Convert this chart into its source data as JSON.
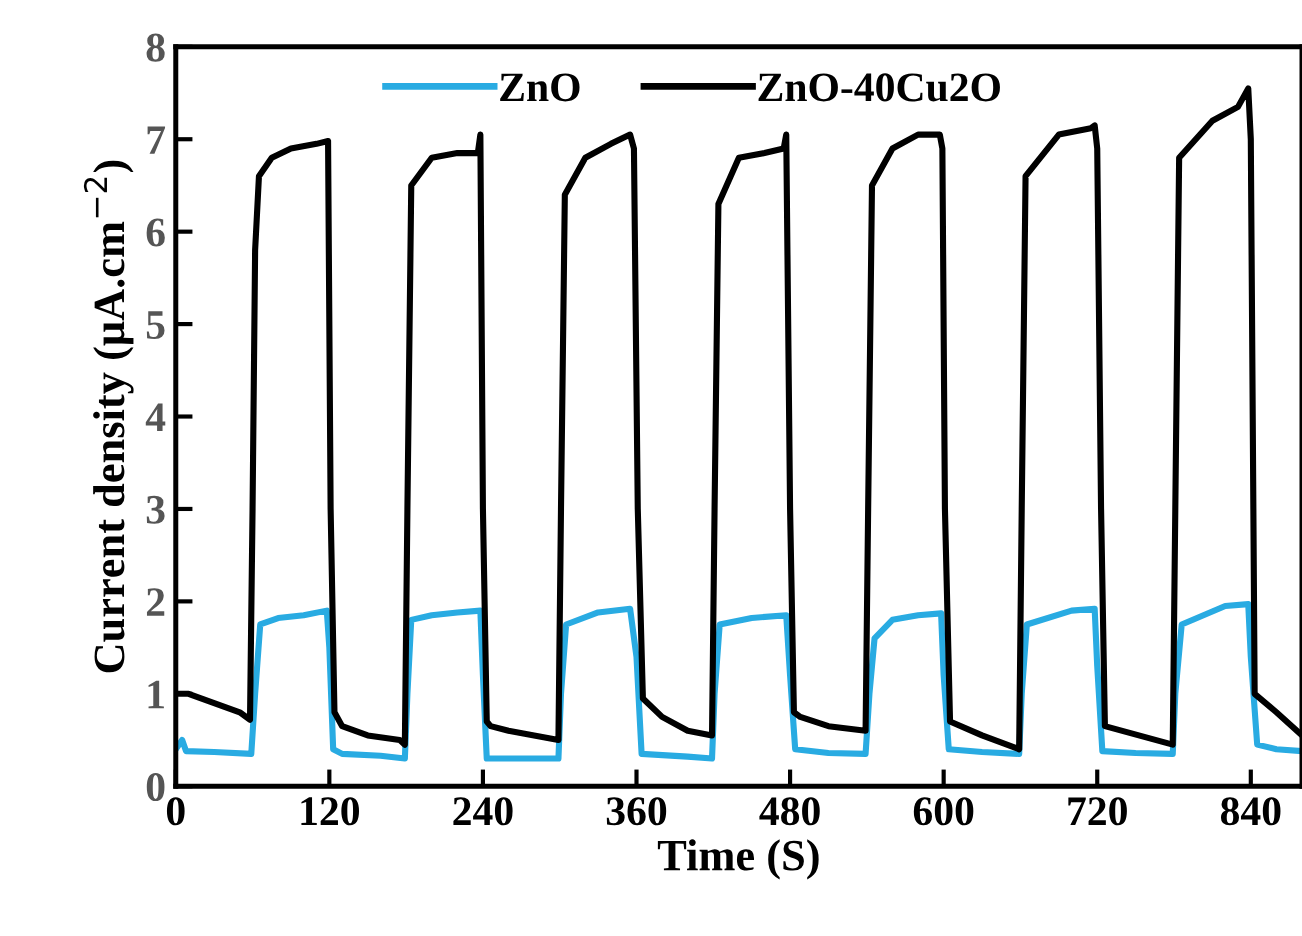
{
  "chart_data": {
    "type": "line",
    "xlabel": "Time (S)",
    "ylabel": "Current density (μA.cm$^{−2}$)",
    "xlim": [
      0,
      880
    ],
    "xticks": [
      0,
      120,
      240,
      360,
      480,
      600,
      720,
      840
    ],
    "ylim": [
      0,
      8
    ],
    "yticks": [
      0,
      1,
      2,
      3,
      4,
      5,
      6,
      7,
      8
    ],
    "grid": false,
    "legend": "top",
    "marker": "none",
    "line_style": "solid",
    "series": [
      {
        "name": "ZnO",
        "color": "#29abe2",
        "x": [
          0,
          5,
          8,
          30,
          59,
          62,
          66,
          80,
          100,
          118,
          120,
          123,
          130,
          160,
          179,
          181,
          184,
          200,
          220,
          238,
          240,
          243,
          260,
          299,
          301,
          305,
          330,
          355,
          360,
          364,
          400,
          419,
          421,
          425,
          450,
          477,
          480,
          484,
          510,
          539,
          542,
          546,
          560,
          580,
          598,
          600,
          604,
          630,
          659,
          661,
          665,
          700,
          718,
          720,
          724,
          750,
          779,
          781,
          786,
          820,
          838,
          840,
          845,
          860,
          880
        ],
        "values": [
          0.4,
          0.5,
          0.38,
          0.37,
          0.35,
          1.0,
          1.75,
          1.82,
          1.85,
          1.9,
          1.5,
          0.4,
          0.35,
          0.33,
          0.3,
          1.0,
          1.8,
          1.85,
          1.88,
          1.9,
          1.2,
          0.3,
          0.3,
          0.3,
          1.0,
          1.75,
          1.88,
          1.92,
          1.4,
          0.35,
          0.32,
          0.3,
          1.0,
          1.75,
          1.82,
          1.85,
          1.2,
          0.4,
          0.36,
          0.35,
          1.0,
          1.6,
          1.8,
          1.85,
          1.87,
          1.2,
          0.4,
          0.37,
          0.35,
          1.0,
          1.75,
          1.9,
          1.92,
          1.3,
          0.38,
          0.36,
          0.35,
          1.0,
          1.75,
          1.95,
          1.97,
          1.4,
          0.45,
          0.4,
          0.38
        ]
      },
      {
        "name": "ZnO-40Cu2O",
        "color": "#000000",
        "x": [
          0,
          10,
          30,
          50,
          58,
          60,
          62,
          65,
          75,
          90,
          110,
          119,
          121,
          124,
          130,
          150,
          175,
          179,
          181,
          184,
          200,
          220,
          236,
          238,
          240,
          243,
          246,
          260,
          280,
          299,
          301,
          304,
          320,
          340,
          355,
          358,
          361,
          365,
          380,
          400,
          419,
          421,
          424,
          440,
          460,
          475,
          477,
          480,
          483,
          488,
          510,
          539,
          541,
          544,
          560,
          580,
          597,
          599,
          601,
          605,
          630,
          659,
          661,
          664,
          690,
          715,
          718,
          720,
          723,
          726,
          779,
          781,
          784,
          810,
          830,
          838,
          840,
          843,
          860,
          880
        ],
        "values": [
          1.0,
          1.0,
          0.9,
          0.8,
          0.72,
          3.0,
          5.8,
          6.6,
          6.8,
          6.9,
          6.95,
          6.98,
          3.0,
          0.8,
          0.65,
          0.55,
          0.5,
          0.45,
          3.0,
          6.5,
          6.8,
          6.85,
          6.85,
          7.05,
          3.0,
          0.7,
          0.65,
          0.6,
          0.55,
          0.5,
          3.0,
          6.4,
          6.8,
          6.95,
          7.05,
          6.9,
          3.0,
          0.95,
          0.75,
          0.6,
          0.55,
          3.0,
          6.3,
          6.8,
          6.85,
          6.9,
          7.05,
          3.0,
          0.8,
          0.75,
          0.65,
          0.6,
          3.0,
          6.5,
          6.9,
          7.05,
          7.05,
          6.9,
          3.0,
          0.7,
          0.55,
          0.4,
          3.0,
          6.6,
          7.05,
          7.12,
          7.15,
          6.9,
          3.0,
          0.65,
          0.45,
          3.0,
          6.8,
          7.2,
          7.35,
          7.55,
          7.0,
          1.0,
          0.8,
          0.55
        ]
      }
    ]
  }
}
